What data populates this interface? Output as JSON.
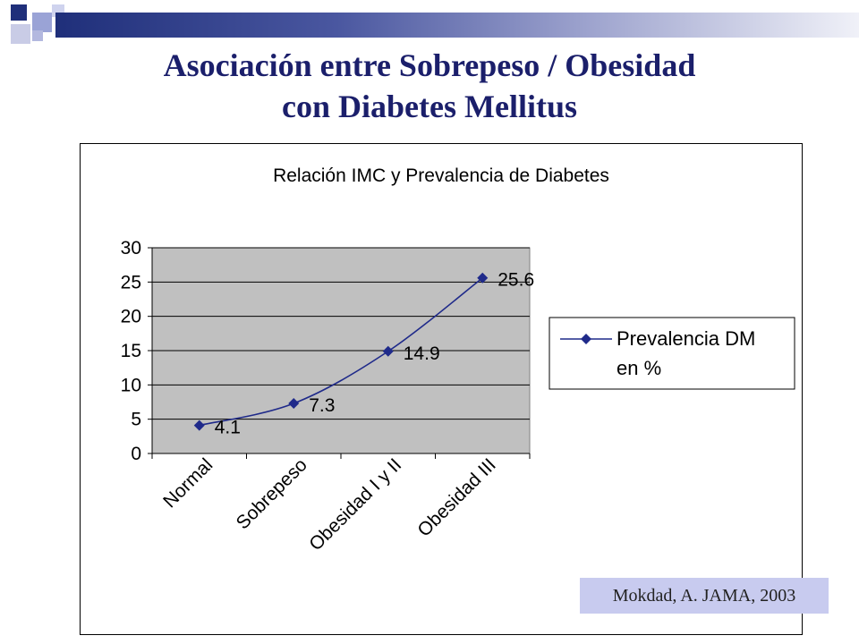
{
  "slide": {
    "title_line1": "Asociación entre Sobrepeso / Obesidad",
    "title_line2": "con Diabetes Mellitus",
    "citation": "Mokdad, A. JAMA, 2003"
  },
  "colors": {
    "title": "#1b1f6b",
    "series_line": "#1f2a8a",
    "plot_background": "#c0c0c0",
    "citation_background": "#c8cbef"
  },
  "chart_data": {
    "type": "line",
    "title": "Relación IMC y Prevalencia de Diabetes",
    "categories": [
      "Normal",
      "Sobrepeso",
      "Obesidad I y II",
      "Obesidad III"
    ],
    "series": [
      {
        "name": "Prevalencia DM en %",
        "values": [
          4.1,
          7.3,
          14.9,
          25.6
        ],
        "marker": "diamond",
        "color": "#1f2a8a"
      }
    ],
    "data_labels": [
      "4.1",
      "7.3",
      "14.9",
      "25.6"
    ],
    "ylim": [
      0,
      30
    ],
    "yticks": [
      0,
      5,
      10,
      15,
      20,
      25,
      30
    ],
    "ytick_labels": [
      "0",
      "5",
      "10",
      "15",
      "20",
      "25",
      "30"
    ],
    "xlabel": "",
    "ylabel": "",
    "grid": "horizontal",
    "legend": {
      "position": "right",
      "lines": [
        "Prevalencia DM",
        "en %"
      ]
    }
  }
}
